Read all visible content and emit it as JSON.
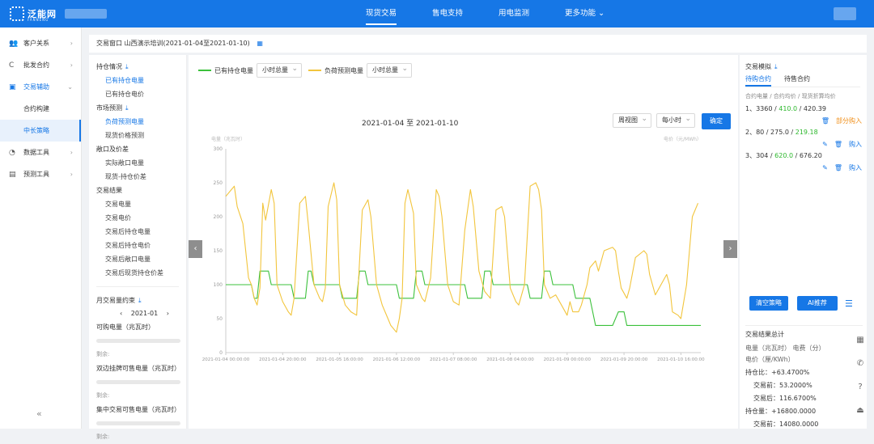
{
  "topbar": {
    "logo_name": "泛能网",
    "logo_sub": "FANNENG",
    "nav": [
      {
        "label": "现货交易",
        "active": true
      },
      {
        "label": "售电支持",
        "active": false
      },
      {
        "label": "用电监测",
        "active": false
      },
      {
        "label": "更多功能 ⌄",
        "active": false
      }
    ]
  },
  "sidebar": {
    "items": [
      {
        "icon": "users-icon",
        "glyph": "👥",
        "label": "客户关系"
      },
      {
        "icon": "refresh-icon",
        "glyph": "C",
        "label": "批发合约"
      },
      {
        "icon": "trade-assist-icon",
        "glyph": "▣",
        "label": "交易辅助"
      }
    ],
    "subitems": [
      "合约构建",
      "中长策略"
    ],
    "items2": [
      {
        "icon": "pie-chart-icon",
        "glyph": "◔",
        "label": "数据工具"
      },
      {
        "icon": "forecast-icon",
        "glyph": "▤",
        "label": "预测工具"
      }
    ],
    "collapse": "«"
  },
  "breadcrumb": {
    "text": "交易窗口  山西演示培训(2021-01-04至2021-01-10)"
  },
  "left_panel": {
    "sections": [
      {
        "head": "持仓情况",
        "links": [
          "已有持仓电量",
          "已有持仓电价"
        ],
        "dl": true
      },
      {
        "head": "市场预测",
        "links": [
          "负荷预测电量",
          "现货价格预测"
        ],
        "dl": true
      },
      {
        "head": "敞口及价差",
        "links": [
          "实际敞口电量",
          "现货-持仓价差"
        ],
        "dl": false
      },
      {
        "head": "交易结果",
        "links": [
          "交易电量",
          "交易电价",
          "交易后持仓电量",
          "交易后持仓电价",
          "交易后敞口电量",
          "交易后现货持仓价差"
        ],
        "dl": false
      }
    ],
    "month_label": "月交易量约束",
    "month_value": "2021-01",
    "prev": "‹",
    "next": "›",
    "can_buy": "可购电量（兆瓦时）",
    "remain1": "剩余:",
    "bilateral": "双边挂牌可售电量（兆瓦时）",
    "remain2": "剩余:",
    "central": "集中交易可售电量（兆瓦时）",
    "remain3": "剩余:"
  },
  "chart_area": {
    "legend1": "已有持仓电量",
    "legend2": "负荷预测电量",
    "sel1": "小时总量",
    "sel2": "小时总量",
    "title": "2021-01-04 至 2021-01-10",
    "view": "周视图",
    "gran": "每小时",
    "ok": "确定",
    "prev": "‹",
    "next": "›"
  },
  "chart_data": {
    "type": "line",
    "ylabel": "电量（兆瓦时）",
    "ylabel_right": "电价（元/MWh）",
    "ylim": [
      0,
      300
    ],
    "yticks": [
      0,
      50,
      100,
      150,
      200,
      250,
      300
    ],
    "x_tick_labels": [
      "2021-01-04 00:00:00",
      "2021-01-04 20:00:00",
      "2021-01-05 16:00:00",
      "2021-01-06 12:00:00",
      "2021-01-07 08:00:00",
      "2021-01-08 04:00:00",
      "2021-01-09 00:00:00",
      "2021-01-09 20:00:00",
      "2021-01-10 16:00:00"
    ],
    "x_hours": [
      0,
      20,
      40,
      60,
      80,
      100,
      120,
      140,
      160
    ],
    "x_max_hours": 167,
    "grid": false,
    "colors": {
      "held": "#3cc13c",
      "load": "#f2c53d"
    },
    "series": [
      {
        "name": "已有持仓电量",
        "points": [
          [
            0,
            100
          ],
          [
            9,
            100
          ],
          [
            10,
            80
          ],
          [
            11,
            80
          ],
          [
            12,
            120
          ],
          [
            15,
            120
          ],
          [
            16,
            100
          ],
          [
            23,
            100
          ],
          [
            24,
            80
          ],
          [
            28,
            80
          ],
          [
            29,
            120
          ],
          [
            30,
            120
          ],
          [
            31,
            100
          ],
          [
            40,
            100
          ],
          [
            41,
            80
          ],
          [
            46,
            80
          ],
          [
            47,
            120
          ],
          [
            49,
            120
          ],
          [
            50,
            100
          ],
          [
            60,
            100
          ],
          [
            61,
            80
          ],
          [
            66,
            80
          ],
          [
            67,
            120
          ],
          [
            69,
            120
          ],
          [
            70,
            100
          ],
          [
            84,
            100
          ],
          [
            85,
            80
          ],
          [
            90,
            80
          ],
          [
            91,
            120
          ],
          [
            93,
            120
          ],
          [
            94,
            100
          ],
          [
            106,
            100
          ],
          [
            107,
            80
          ],
          [
            111,
            80
          ],
          [
            112,
            120
          ],
          [
            114,
            120
          ],
          [
            115,
            100
          ],
          [
            122,
            100
          ],
          [
            123,
            80
          ],
          [
            127,
            80
          ],
          [
            128,
            80
          ],
          [
            130,
            40
          ],
          [
            136,
            40
          ],
          [
            138,
            60
          ],
          [
            140,
            60
          ],
          [
            141,
            40
          ],
          [
            167,
            40
          ]
        ]
      },
      {
        "name": "负荷预测电量",
        "points": [
          [
            0,
            230
          ],
          [
            2,
            240
          ],
          [
            3,
            245
          ],
          [
            4,
            215
          ],
          [
            6,
            190
          ],
          [
            8,
            110
          ],
          [
            9,
            100
          ],
          [
            10,
            80
          ],
          [
            11,
            70
          ],
          [
            12,
            95
          ],
          [
            13,
            220
          ],
          [
            14,
            195
          ],
          [
            16,
            240
          ],
          [
            17,
            220
          ],
          [
            18,
            100
          ],
          [
            20,
            75
          ],
          [
            22,
            60
          ],
          [
            23,
            55
          ],
          [
            24,
            80
          ],
          [
            26,
            220
          ],
          [
            28,
            230
          ],
          [
            29,
            190
          ],
          [
            31,
            100
          ],
          [
            33,
            80
          ],
          [
            34,
            75
          ],
          [
            35,
            95
          ],
          [
            36,
            215
          ],
          [
            38,
            250
          ],
          [
            39,
            225
          ],
          [
            40,
            100
          ],
          [
            42,
            70
          ],
          [
            44,
            60
          ],
          [
            46,
            55
          ],
          [
            48,
            210
          ],
          [
            50,
            225
          ],
          [
            51,
            200
          ],
          [
            53,
            100
          ],
          [
            55,
            70
          ],
          [
            57,
            50
          ],
          [
            58,
            40
          ],
          [
            60,
            30
          ],
          [
            61,
            50
          ],
          [
            62,
            80
          ],
          [
            63,
            220
          ],
          [
            64,
            240
          ],
          [
            66,
            205
          ],
          [
            67,
            100
          ],
          [
            69,
            80
          ],
          [
            70,
            75
          ],
          [
            72,
            110
          ],
          [
            74,
            240
          ],
          [
            75,
            230
          ],
          [
            76,
            200
          ],
          [
            78,
            100
          ],
          [
            80,
            75
          ],
          [
            82,
            70
          ],
          [
            84,
            180
          ],
          [
            86,
            240
          ],
          [
            87,
            215
          ],
          [
            89,
            120
          ],
          [
            91,
            90
          ],
          [
            93,
            80
          ],
          [
            95,
            210
          ],
          [
            97,
            215
          ],
          [
            98,
            200
          ],
          [
            100,
            95
          ],
          [
            102,
            75
          ],
          [
            103,
            70
          ],
          [
            105,
            100
          ],
          [
            107,
            245
          ],
          [
            109,
            250
          ],
          [
            110,
            240
          ],
          [
            111,
            210
          ],
          [
            112,
            100
          ],
          [
            114,
            80
          ],
          [
            116,
            85
          ],
          [
            118,
            70
          ],
          [
            120,
            55
          ],
          [
            121,
            75
          ],
          [
            122,
            60
          ],
          [
            124,
            60
          ],
          [
            125,
            70
          ],
          [
            127,
            100
          ],
          [
            128,
            125
          ],
          [
            130,
            135
          ],
          [
            131,
            120
          ],
          [
            133,
            150
          ],
          [
            136,
            155
          ],
          [
            137,
            150
          ],
          [
            138,
            120
          ],
          [
            139,
            95
          ],
          [
            141,
            80
          ],
          [
            142,
            95
          ],
          [
            144,
            140
          ],
          [
            147,
            150
          ],
          [
            148,
            145
          ],
          [
            149,
            115
          ],
          [
            151,
            85
          ],
          [
            153,
            100
          ],
          [
            155,
            115
          ],
          [
            156,
            100
          ],
          [
            157,
            60
          ],
          [
            159,
            55
          ],
          [
            160,
            50
          ],
          [
            162,
            100
          ],
          [
            164,
            200
          ],
          [
            166,
            220
          ]
        ]
      }
    ]
  },
  "right_panel": {
    "title": "交易模拟",
    "tab1": "待购合约",
    "tab2": "待售合约",
    "note": "合约电量 / 合约均价 / 现货折算均价",
    "orders": [
      {
        "a": "1、3360 / ",
        "b": "410.0",
        "c": " / 420.39",
        "acts": [
          "🗑",
          "部分购入"
        ],
        "partial": true
      },
      {
        "a": "2、80 / 275.0 / ",
        "b": "219.18",
        "c": "",
        "acts": [
          "✎",
          "🗑",
          "购入"
        ],
        "partial": false
      },
      {
        "a": "3、304 / ",
        "b": "620.0",
        "c": " / 676.20",
        "acts": [
          "✎",
          "🗑",
          "购入"
        ],
        "partial": false
      }
    ],
    "btn_clear": "清空策略",
    "btn_ai": "AI推荐",
    "sum_title": "交易结果总计",
    "sum_cols": "电量（兆瓦时）      电费（分）",
    "sum_unit": "电价（厘/KWh）",
    "hold_ratio": "持仓比：+63.4700%",
    "before": "交易前：53.2000%",
    "after": "交易后：116.6700%",
    "hold_qty": "持仓量：+16800.0000",
    "before_qty": "交易前：14080.0000"
  },
  "side_icons": [
    "▦",
    "✆",
    "?",
    "⏏"
  ]
}
